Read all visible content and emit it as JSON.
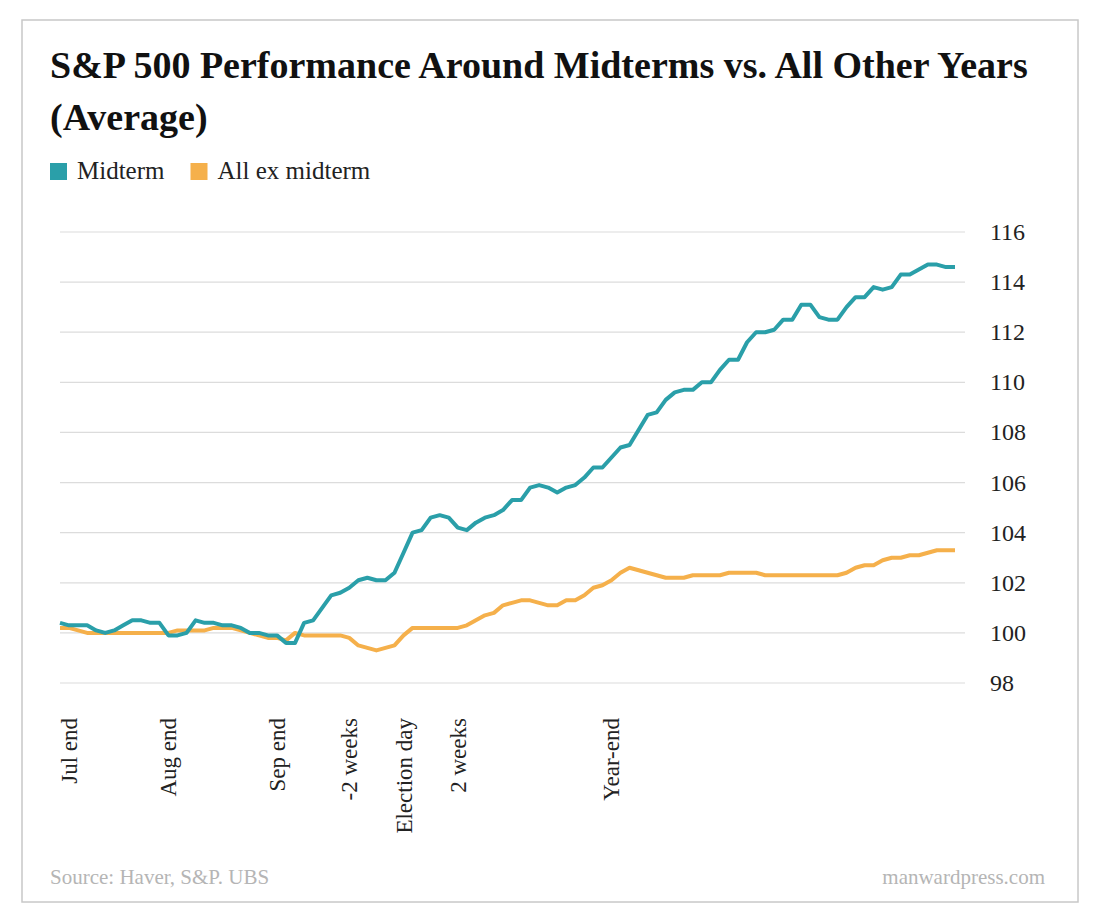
{
  "chart_data": {
    "type": "line",
    "title": "S&P 500 Performance Around Midterms vs. All Other Years (Average)",
    "source": "Source: Haver, S&P. UBS",
    "credit": "manwardpress.com",
    "legend": "top-left",
    "grid": true,
    "ylim": [
      98,
      116
    ],
    "yticks": [
      98,
      100,
      102,
      104,
      106,
      108,
      110,
      112,
      114,
      116
    ],
    "categories": [
      null,
      "Jul end",
      null,
      null,
      null,
      null,
      null,
      null,
      null,
      null,
      null,
      null,
      "Aug end",
      null,
      null,
      null,
      null,
      null,
      null,
      null,
      null,
      null,
      null,
      null,
      "Sep end",
      null,
      null,
      null,
      null,
      null,
      null,
      null,
      "-2 weeks",
      null,
      null,
      null,
      null,
      null,
      "Election day",
      null,
      null,
      null,
      null,
      null,
      "2 weeks",
      null,
      null,
      null,
      null,
      null,
      null,
      null,
      null,
      null,
      null,
      null,
      null,
      null,
      null,
      null,
      null,
      "Year-end",
      null,
      null,
      null,
      null,
      null,
      null,
      null,
      null,
      null,
      null,
      null,
      null,
      null,
      null,
      null,
      null,
      null,
      null,
      null,
      null,
      null,
      null,
      null,
      null,
      null,
      null,
      null,
      null,
      null,
      null,
      null,
      null,
      null,
      null,
      null,
      null,
      null,
      null
    ],
    "series": [
      {
        "name": "Midterm",
        "color": "#2a9fa9",
        "values": [
          100.4,
          100.3,
          100.3,
          100.3,
          100.1,
          100.0,
          100.1,
          100.3,
          100.5,
          100.5,
          100.4,
          100.4,
          99.9,
          99.9,
          100.0,
          100.5,
          100.4,
          100.4,
          100.3,
          100.3,
          100.2,
          100.0,
          100.0,
          99.9,
          99.9,
          99.6,
          99.6,
          100.4,
          100.5,
          101.0,
          101.5,
          101.6,
          101.8,
          102.1,
          102.2,
          102.1,
          102.1,
          102.4,
          103.2,
          104.0,
          104.1,
          104.6,
          104.7,
          104.6,
          104.2,
          104.1,
          104.4,
          104.6,
          104.7,
          104.9,
          105.3,
          105.3,
          105.8,
          105.9,
          105.8,
          105.6,
          105.8,
          105.9,
          106.2,
          106.6,
          106.6,
          107.0,
          107.4,
          107.5,
          108.1,
          108.7,
          108.8,
          109.3,
          109.6,
          109.7,
          109.7,
          110.0,
          110.0,
          110.5,
          110.9,
          110.9,
          111.6,
          112.0,
          112.0,
          112.1,
          112.5,
          112.5,
          113.1,
          113.1,
          112.6,
          112.5,
          112.5,
          113.0,
          113.4,
          113.4,
          113.8,
          113.7,
          113.8,
          114.3,
          114.3,
          114.5,
          114.7,
          114.7,
          114.6,
          114.6
        ]
      },
      {
        "name": "All ex midterm",
        "color": "#f5b04b",
        "values": [
          100.2,
          100.2,
          100.1,
          100.0,
          100.0,
          100.0,
          100.0,
          100.0,
          100.0,
          100.0,
          100.0,
          100.0,
          100.0,
          100.1,
          100.1,
          100.1,
          100.1,
          100.2,
          100.2,
          100.2,
          100.1,
          100.0,
          99.9,
          99.8,
          99.8,
          99.7,
          100.0,
          99.9,
          99.9,
          99.9,
          99.9,
          99.9,
          99.8,
          99.5,
          99.4,
          99.3,
          99.4,
          99.5,
          99.9,
          100.2,
          100.2,
          100.2,
          100.2,
          100.2,
          100.2,
          100.3,
          100.5,
          100.7,
          100.8,
          101.1,
          101.2,
          101.3,
          101.3,
          101.2,
          101.1,
          101.1,
          101.3,
          101.3,
          101.5,
          101.8,
          101.9,
          102.1,
          102.4,
          102.6,
          102.5,
          102.4,
          102.3,
          102.2,
          102.2,
          102.2,
          102.3,
          102.3,
          102.3,
          102.3,
          102.4,
          102.4,
          102.4,
          102.4,
          102.3,
          102.3,
          102.3,
          102.3,
          102.3,
          102.3,
          102.3,
          102.3,
          102.3,
          102.4,
          102.6,
          102.7,
          102.7,
          102.9,
          103.0,
          103.0,
          103.1,
          103.1,
          103.2,
          103.3,
          103.3,
          103.3
        ]
      }
    ]
  }
}
